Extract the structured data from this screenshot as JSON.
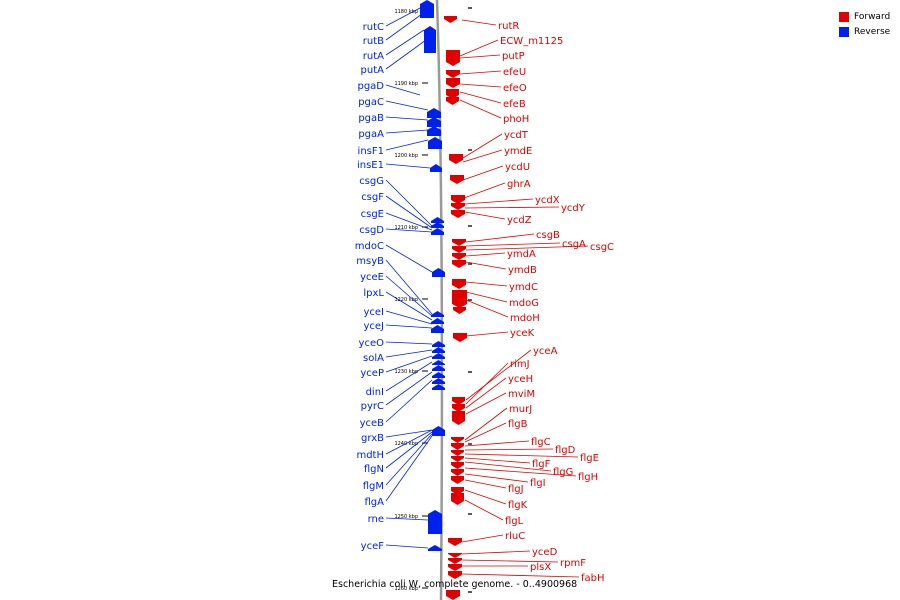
{
  "colors": {
    "forward": "#e00000",
    "reverse": "#0020ee",
    "backbone": "#999999"
  },
  "legend": [
    {
      "label": "Forward",
      "color": "#e00000"
    },
    {
      "label": "Reverse",
      "color": "#0020ee"
    }
  ],
  "caption": "Escherichia coli W, complete genome. - 0..4900968",
  "scale_ticks": [
    "1180 kbp",
    "1190 kbp",
    "1200 kbp",
    "1210 kbp",
    "1220 kbp",
    "1230 kbp",
    "1240 kbp",
    "1250 kbp",
    "1260 kbp"
  ],
  "reverse_genes": [
    "rutC",
    "rutB",
    "rutA",
    "putA",
    "pgaD",
    "pgaC",
    "pgaB",
    "pgaA",
    "insF1",
    "insE1",
    "csgG",
    "csgF",
    "csgE",
    "csgD",
    "mdoC",
    "msyB",
    "yceE",
    "lpxL",
    "yceI",
    "yceJ",
    "yceO",
    "solA",
    "yceP",
    "dinI",
    "pyrC",
    "yceB",
    "grxB",
    "mdtH",
    "flgN",
    "flgM",
    "flgA",
    "rne",
    "yceF"
  ],
  "forward_genes": [
    "rutR",
    "ECW_m1125",
    "putP",
    "efeU",
    "efeO",
    "efeB",
    "phoH",
    "ycdT",
    "ymdE",
    "ycdU",
    "ghrA",
    "ycdX",
    "ycdY",
    "ycdZ",
    "csgB",
    "csgA",
    "csgC",
    "ymdA",
    "ymdB",
    "ymdC",
    "mdoG",
    "mdoH",
    "yceK",
    "yceA",
    "rimJ",
    "yceH",
    "mviM",
    "murJ",
    "flgB",
    "flgC",
    "flgD",
    "flgE",
    "flgF",
    "flgG",
    "flgH",
    "flgI",
    "flgJ",
    "flgK",
    "flgL",
    "rluC",
    "yceD",
    "rpmF",
    "plsX",
    "fabH"
  ]
}
